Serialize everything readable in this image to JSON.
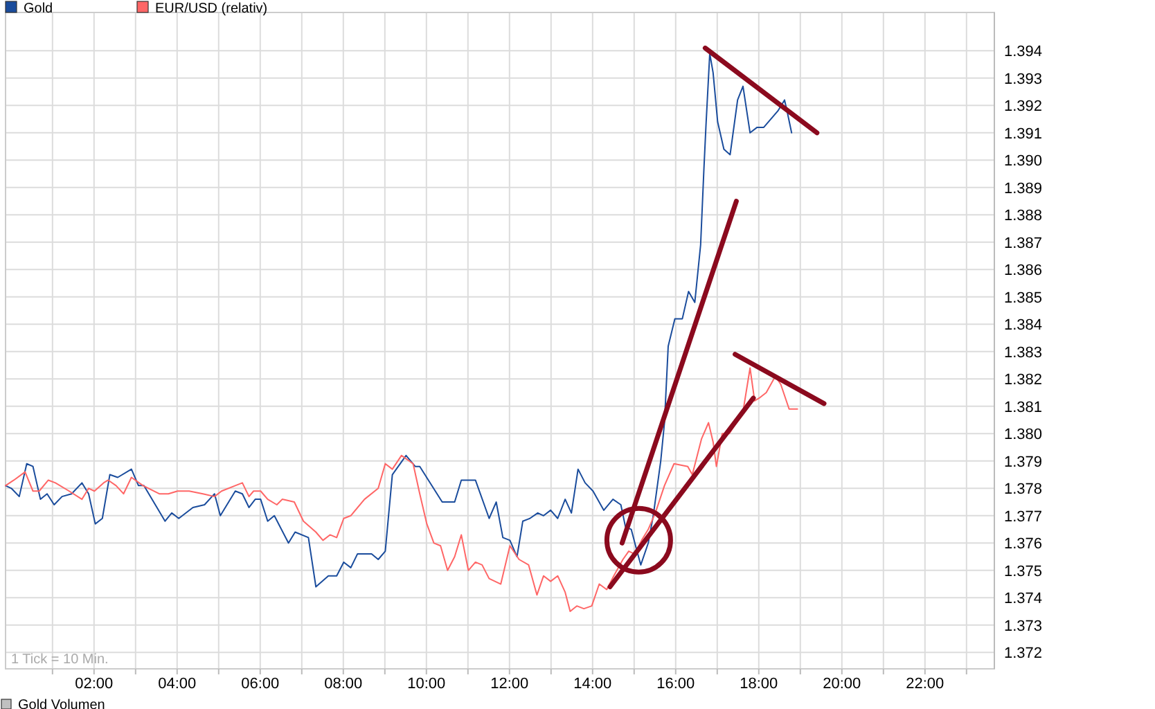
{
  "chart_data": {
    "type": "line",
    "legend": "top left",
    "grid": true,
    "line_style": "solid",
    "marker": "none",
    "xlim": [
      -0.13,
      23.67
    ],
    "ylim": [
      1.3714,
      1.3954
    ],
    "xticks": [
      {
        "value": 1,
        "label": null
      },
      {
        "value": 2,
        "label": "02:00"
      },
      {
        "value": 3,
        "label": null
      },
      {
        "value": 4,
        "label": "04:00"
      },
      {
        "value": 5,
        "label": null
      },
      {
        "value": 6,
        "label": "06:00"
      },
      {
        "value": 7,
        "label": null
      },
      {
        "value": 8,
        "label": "08:00"
      },
      {
        "value": 9,
        "label": null
      },
      {
        "value": 10,
        "label": "10:00"
      },
      {
        "value": 11,
        "label": null
      },
      {
        "value": 12,
        "label": "12:00"
      },
      {
        "value": 13,
        "label": null
      },
      {
        "value": 14,
        "label": "14:00"
      },
      {
        "value": 15,
        "label": null
      },
      {
        "value": 16,
        "label": "16:00"
      },
      {
        "value": 17,
        "label": null
      },
      {
        "value": 18,
        "label": "18:00"
      },
      {
        "value": 19,
        "label": null
      },
      {
        "value": 20,
        "label": "20:00"
      },
      {
        "value": 21,
        "label": null
      },
      {
        "value": 22,
        "label": "22:00"
      },
      {
        "value": 23,
        "label": null
      }
    ],
    "yticks": [
      1.372,
      1.373,
      1.374,
      1.375,
      1.376,
      1.377,
      1.378,
      1.379,
      {
        "value": 1.38,
        "label": "1.380"
      },
      1.381,
      1.382,
      1.383,
      1.384,
      1.385,
      1.386,
      1.387,
      1.388,
      1.389,
      {
        "value": 1.39,
        "label": "1.390"
      },
      1.391,
      1.392,
      1.393,
      1.394
    ],
    "annotations": [
      "1 Tick = 10 Min.",
      "Gold Volumen"
    ],
    "series": [
      {
        "name": "Gold",
        "color": "#1a4c9c",
        "x": [
          -0.13,
          0.01,
          0.2,
          0.38,
          0.53,
          0.71,
          0.87,
          1.04,
          1.23,
          1.46,
          1.71,
          1.87,
          2.03,
          2.2,
          2.38,
          2.57,
          2.9,
          3.07,
          3.2,
          3.71,
          3.87,
          4.04,
          4.38,
          4.66,
          4.9,
          5.04,
          5.4,
          5.57,
          5.73,
          5.88,
          6.01,
          6.18,
          6.34,
          6.68,
          6.84,
          7.16,
          7.34,
          7.64,
          7.84,
          8.01,
          8.18,
          8.34,
          8.68,
          8.84,
          9.01,
          9.18,
          9.51,
          9.73,
          9.84,
          10.38,
          10.68,
          10.84,
          11.18,
          11.51,
          11.68,
          11.84,
          12.01,
          12.18,
          12.32,
          12.49,
          12.68,
          12.82,
          12.99,
          13.16,
          13.34,
          13.49,
          13.65,
          13.82,
          14.01,
          14.27,
          14.49,
          14.68,
          14.79,
          14.93,
          15.07,
          15.16,
          15.34,
          15.46,
          15.64,
          15.73,
          15.82,
          15.98,
          16.16,
          16.31,
          16.46,
          16.6,
          16.68,
          16.73,
          16.82,
          16.9,
          17.01,
          17.16,
          17.31,
          17.49,
          17.62,
          17.79,
          17.96,
          18.12,
          18.46,
          18.62,
          18.68,
          18.79
        ],
        "values": [
          1.3781,
          1.378,
          1.3777,
          1.3789,
          1.3788,
          1.3776,
          1.3778,
          1.3774,
          1.3777,
          1.3778,
          1.3782,
          1.3778,
          1.3767,
          1.3769,
          1.3785,
          1.3784,
          1.3787,
          1.3781,
          1.3781,
          1.3768,
          1.3771,
          1.3769,
          1.3773,
          1.3774,
          1.3778,
          1.377,
          1.3779,
          1.3778,
          1.3773,
          1.3776,
          1.3776,
          1.3768,
          1.377,
          1.376,
          1.3764,
          1.3762,
          1.3744,
          1.3748,
          1.3748,
          1.3753,
          1.3751,
          1.3756,
          1.3756,
          1.3754,
          1.3757,
          1.3785,
          1.3792,
          1.3788,
          1.3788,
          1.3775,
          1.3775,
          1.3783,
          1.3783,
          1.3769,
          1.3775,
          1.3762,
          1.3761,
          1.3755,
          1.3768,
          1.3769,
          1.3771,
          1.377,
          1.3772,
          1.3769,
          1.3776,
          1.3771,
          1.3787,
          1.3782,
          1.3779,
          1.3772,
          1.3776,
          1.3774,
          1.3766,
          1.3765,
          1.3757,
          1.3752,
          1.376,
          1.377,
          1.379,
          1.3804,
          1.3832,
          1.3842,
          1.3842,
          1.3852,
          1.3848,
          1.3869,
          1.3897,
          1.3913,
          1.3939,
          1.3932,
          1.3914,
          1.3904,
          1.3902,
          1.3922,
          1.3927,
          1.391,
          1.3912,
          1.3912,
          1.3918,
          1.3922,
          1.3918,
          1.391
        ]
      },
      {
        "name": "EUR/USD (relativ)",
        "color": "#ff6666",
        "x": [
          -0.13,
          0.07,
          0.34,
          0.53,
          0.68,
          0.9,
          1.07,
          1.4,
          1.71,
          1.87,
          2.01,
          2.23,
          2.34,
          2.53,
          2.71,
          2.9,
          3.18,
          3.57,
          3.79,
          4.01,
          4.29,
          4.62,
          4.9,
          5.07,
          5.4,
          5.57,
          5.73,
          5.84,
          6.01,
          6.18,
          6.4,
          6.53,
          6.82,
          7.04,
          7.34,
          7.51,
          7.68,
          7.84,
          8.01,
          8.18,
          8.51,
          8.84,
          9.01,
          9.18,
          9.4,
          9.68,
          9.84,
          10.01,
          10.18,
          10.34,
          10.51,
          10.68,
          10.84,
          11.01,
          11.18,
          11.34,
          11.51,
          11.79,
          12.01,
          12.23,
          12.46,
          12.66,
          12.82,
          12.99,
          13.16,
          13.34,
          13.46,
          13.62,
          13.79,
          13.98,
          14.16,
          14.34,
          14.51,
          14.73,
          14.87,
          15.01,
          15.18,
          15.34,
          15.51,
          15.73,
          15.96,
          16.29,
          16.4,
          16.62,
          16.79,
          16.9,
          16.98,
          17.12,
          17.29,
          17.46,
          17.62,
          17.79,
          17.9,
          18.01,
          18.18,
          18.4,
          18.53,
          18.73,
          18.82,
          18.93
        ],
        "values": [
          1.3781,
          1.3783,
          1.3786,
          1.3779,
          1.3779,
          1.3783,
          1.3782,
          1.3779,
          1.3776,
          1.378,
          1.3779,
          1.3782,
          1.3783,
          1.3781,
          1.3778,
          1.3784,
          1.3781,
          1.3778,
          1.3778,
          1.3779,
          1.3779,
          1.3778,
          1.3777,
          1.3779,
          1.3781,
          1.3782,
          1.3777,
          1.3779,
          1.3779,
          1.3776,
          1.3774,
          1.3776,
          1.3775,
          1.3768,
          1.3764,
          1.3761,
          1.3763,
          1.3762,
          1.3769,
          1.377,
          1.3776,
          1.378,
          1.3789,
          1.3787,
          1.3792,
          1.3789,
          1.3778,
          1.3767,
          1.376,
          1.3759,
          1.375,
          1.3755,
          1.3763,
          1.375,
          1.3753,
          1.3752,
          1.3747,
          1.3745,
          1.3759,
          1.3754,
          1.3752,
          1.3741,
          1.3748,
          1.3746,
          1.3748,
          1.3742,
          1.3735,
          1.3737,
          1.3736,
          1.3737,
          1.3745,
          1.3743,
          1.3748,
          1.3754,
          1.3757,
          1.3756,
          1.3761,
          1.3765,
          1.3771,
          1.3781,
          1.3789,
          1.3788,
          1.3785,
          1.3798,
          1.3804,
          1.3797,
          1.3788,
          1.38,
          1.38,
          1.3804,
          1.3808,
          1.3824,
          1.3812,
          1.3813,
          1.3815,
          1.3821,
          1.3818,
          1.3809,
          1.3809,
          1.3809
        ]
      },
      {
        "type": "line",
        "color": "#8b0a1e",
        "x": [
          16.71,
          19.4
        ],
        "values": [
          1.3941,
          1.391
        ]
      },
      {
        "type": "line",
        "color": "#8b0a1e",
        "x": [
          14.71,
          17.46
        ],
        "values": [
          1.376,
          1.3885
        ]
      },
      {
        "type": "line",
        "color": "#8b0a1e",
        "x": [
          17.43,
          19.57
        ],
        "values": [
          1.3829,
          1.3811
        ]
      },
      {
        "type": "line",
        "color": "#8b0a1e",
        "x": [
          14.42,
          17.87
        ],
        "values": [
          1.3744,
          1.3813
        ]
      }
    ]
  }
}
